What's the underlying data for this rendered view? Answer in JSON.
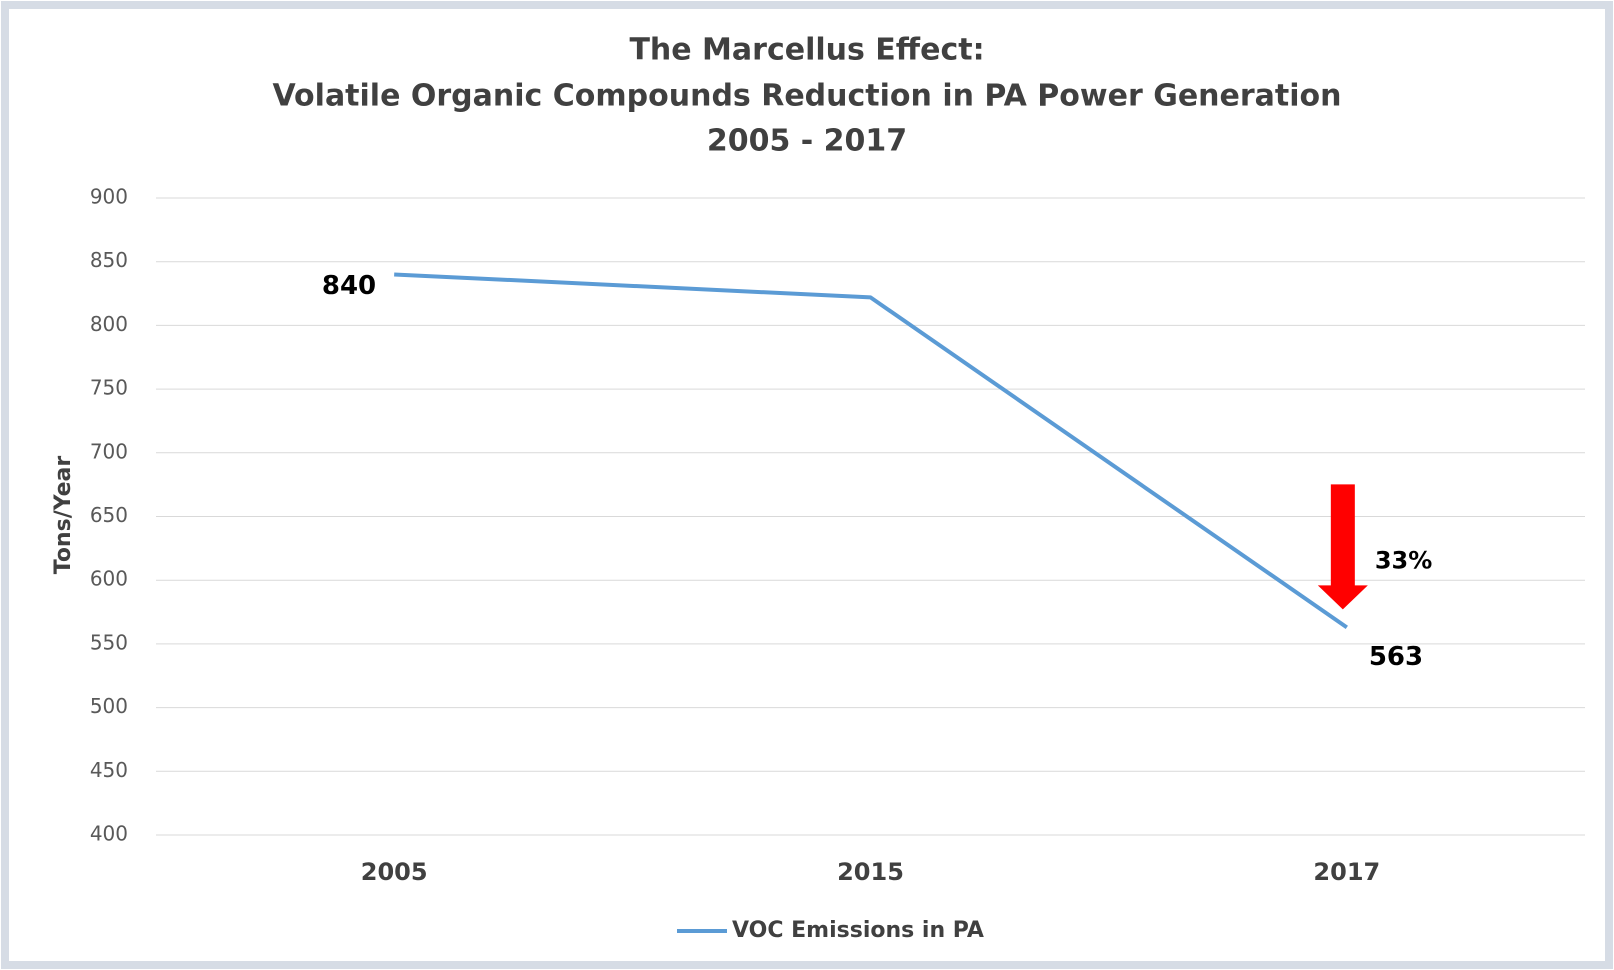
{
  "chart_data": {
    "type": "line",
    "title": [
      "The Marcellus Effect:",
      "Volatile Organic Compounds Reduction in PA Power Generation",
      "2005 - 2017"
    ],
    "ylabel": "Tons/Year",
    "categories": [
      "2005",
      "2015",
      "2017"
    ],
    "series": [
      {
        "name": "VOC Emissions in PA",
        "color": "#5b9bd5",
        "values": [
          840,
          822,
          563
        ]
      }
    ],
    "data_labels": [
      true,
      false,
      true
    ],
    "annotations": [
      "33%"
    ],
    "annotation_color": "#ff0000",
    "ylim": [
      400,
      900
    ],
    "yticks": [
      400,
      450,
      500,
      550,
      600,
      650,
      700,
      750,
      800,
      850,
      900
    ],
    "grid": true,
    "legend": "bottom"
  }
}
